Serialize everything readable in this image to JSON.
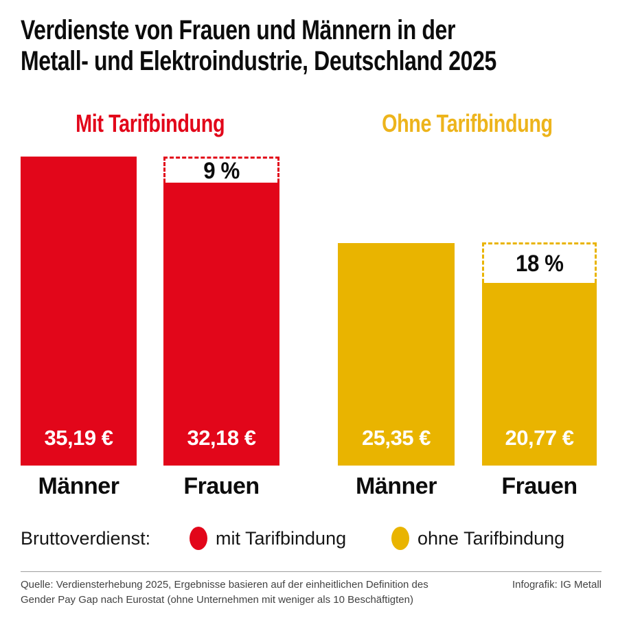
{
  "title": "Verdienste von Frauen und Männern in der\nMetall- und Elektroindustrie, Deutschland 2025",
  "colors": {
    "red": "#E2061A",
    "gold": "#E9B400",
    "gold_heading": "#EDB41C",
    "text_black": "#0C0C0C",
    "footer_gray": "#424242"
  },
  "chart_data": {
    "type": "bar",
    "title": "Verdienste von Frauen und Männern in der Metall- und Elektroindustrie, Deutschland 2025",
    "ylabel": "Bruttoverdienst (€)",
    "ylim": [
      0,
      35.19
    ],
    "grid": false,
    "groups": [
      {
        "heading": "Mit Tarifbindung",
        "color": "#E2061A",
        "heading_color": "#E2061A",
        "categories": [
          "Männer",
          "Frauen"
        ],
        "bars": [
          {
            "label": "Männer",
            "value": 35.19,
            "value_label": "35,19 €"
          },
          {
            "label": "Frauen",
            "value": 32.18,
            "value_label": "32,18 €",
            "gap_label": "9 %"
          }
        ]
      },
      {
        "heading": "Ohne Tarifbindung",
        "color": "#E9B400",
        "heading_color": "#EDB41C",
        "categories": [
          "Männer",
          "Frauen"
        ],
        "bars": [
          {
            "label": "Männer",
            "value": 25.35,
            "value_label": "25,35 €"
          },
          {
            "label": "Frauen",
            "value": 20.77,
            "value_label": "20,77 €",
            "gap_label": "18 %"
          }
        ]
      }
    ]
  },
  "legend": {
    "label": "Bruttoverdienst:",
    "items": [
      {
        "label": "mit Tarifbindung",
        "color": "#E2061A"
      },
      {
        "label": "ohne Tarifbindung",
        "color": "#E9B400"
      }
    ]
  },
  "footer": {
    "source": "Quelle: Verdiensterhebung 2025, Ergebnisse basieren auf der einheitlichen Definition des\nGender Pay Gap nach Eurostat (ohne Unternehmen mit weniger als 10 Beschäftigten)",
    "credit": "Infografik: IG Metall"
  }
}
